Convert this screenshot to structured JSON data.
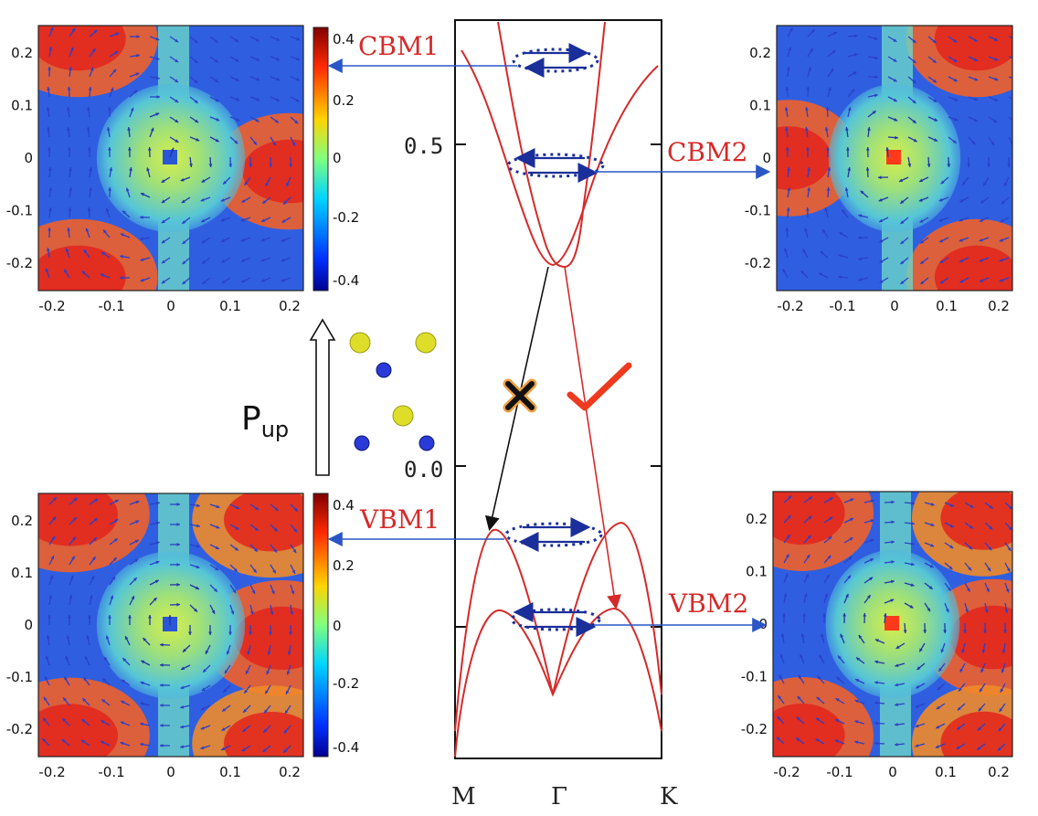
{
  "colors": {
    "band": "#d62a2a",
    "label": "#d62a2a",
    "arrow_blue": "#2a56c6",
    "dotted_blue": "#1a2f9a",
    "transition_black": "#111111",
    "check": "#ee3a1f",
    "atom_yellow": "#dede2a",
    "atom_blue": "#2a3ad8"
  },
  "band_axis": {
    "y_ticks": [
      "0.5",
      "0.0"
    ],
    "x_ticks": [
      "M",
      "Γ",
      "K"
    ]
  },
  "state_labels": {
    "cbm1": "CBM1",
    "cbm2": "CBM2",
    "vbm1": "VBM1",
    "vbm2": "VBM2"
  },
  "polarization": {
    "main": "P",
    "sub": "up"
  },
  "spin_maps": {
    "tick_labels_x": [
      "-0.2",
      "-0.1",
      "0",
      "0.1",
      "0.2"
    ],
    "tick_labels_y": [
      "0.2",
      "0.1",
      "0",
      "-0.1",
      "-0.2"
    ],
    "colorbar_ticks": [
      "0.4",
      "0.2",
      "0",
      "-0.2",
      "-0.4"
    ]
  },
  "icons": {
    "forbidden": "cross-icon",
    "allowed": "check-icon"
  }
}
